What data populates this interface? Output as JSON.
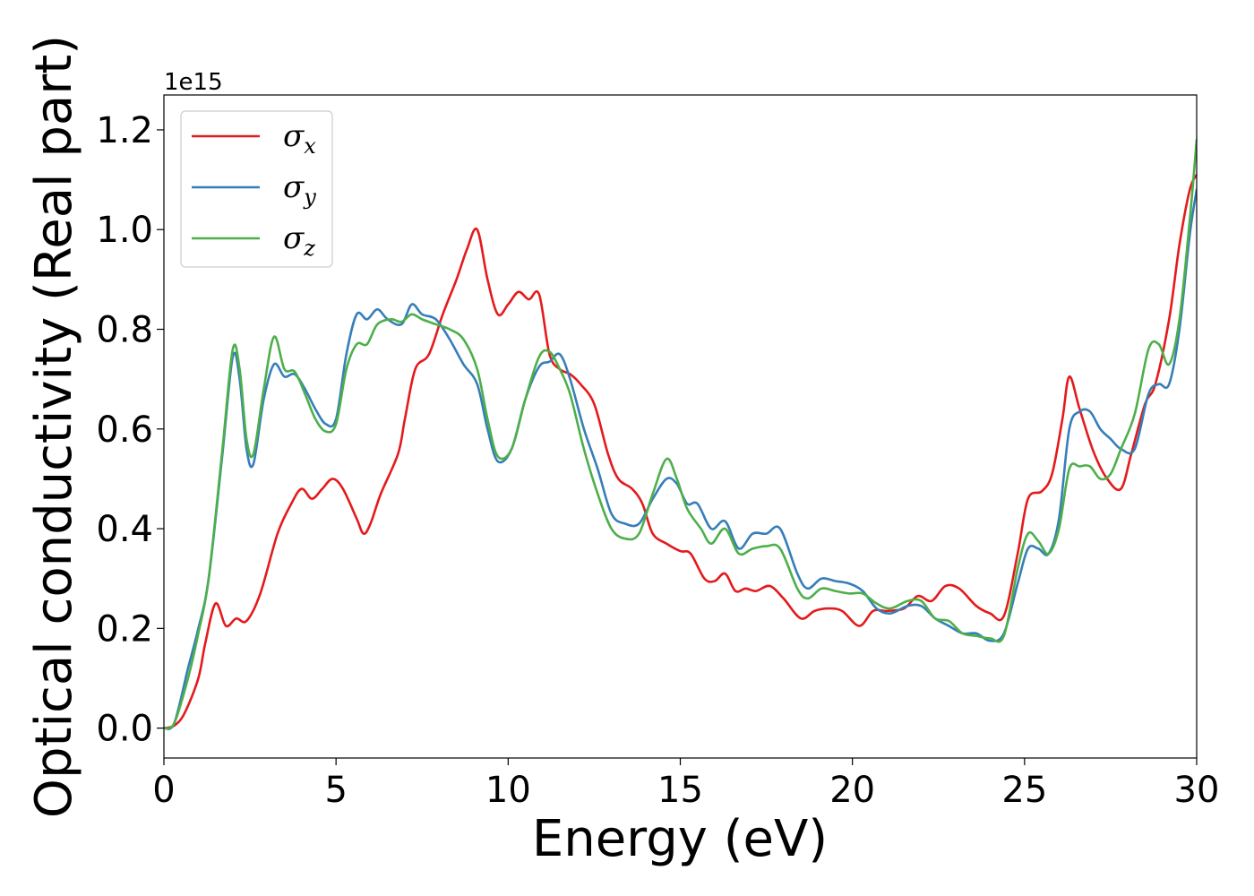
{
  "chart_data": {
    "type": "line",
    "title": "",
    "xlabel": "Energy (eV)",
    "ylabel": "Optical conductivity (Real part)",
    "y_offset_label": "1e15",
    "xlim": [
      0,
      30
    ],
    "ylim": [
      -0.06,
      1.27
    ],
    "x_ticks": [
      0,
      5,
      10,
      15,
      20,
      25,
      30
    ],
    "x_tick_labels": [
      "0",
      "5",
      "10",
      "15",
      "20",
      "25",
      "30"
    ],
    "y_ticks": [
      0.0,
      0.2,
      0.4,
      0.6,
      0.8,
      1.0,
      1.2
    ],
    "y_tick_labels": [
      "0.0",
      "0.2",
      "0.4",
      "0.6",
      "0.8",
      "1.0",
      "1.2"
    ],
    "grid": false,
    "legend_position": "top-left",
    "series": [
      {
        "name": "σx",
        "symbol": "σ",
        "subscript": "x",
        "color": "#e41a1c",
        "points": [
          [
            0,
            0
          ],
          [
            0.3,
            0.005
          ],
          [
            0.6,
            0.03
          ],
          [
            1.0,
            0.1
          ],
          [
            1.2,
            0.17
          ],
          [
            1.5,
            0.25
          ],
          [
            1.8,
            0.205
          ],
          [
            2.1,
            0.22
          ],
          [
            2.4,
            0.215
          ],
          [
            2.8,
            0.27
          ],
          [
            3.3,
            0.39
          ],
          [
            3.7,
            0.45
          ],
          [
            4.0,
            0.48
          ],
          [
            4.3,
            0.46
          ],
          [
            4.6,
            0.48
          ],
          [
            4.9,
            0.5
          ],
          [
            5.2,
            0.48
          ],
          [
            5.6,
            0.42
          ],
          [
            5.8,
            0.39
          ],
          [
            6.0,
            0.41
          ],
          [
            6.3,
            0.47
          ],
          [
            6.8,
            0.55
          ],
          [
            7.0,
            0.62
          ],
          [
            7.3,
            0.72
          ],
          [
            7.7,
            0.75
          ],
          [
            8.1,
            0.83
          ],
          [
            8.5,
            0.9
          ],
          [
            8.8,
            0.96
          ],
          [
            9.1,
            1.0
          ],
          [
            9.4,
            0.9
          ],
          [
            9.7,
            0.83
          ],
          [
            10.0,
            0.85
          ],
          [
            10.3,
            0.875
          ],
          [
            10.6,
            0.86
          ],
          [
            10.9,
            0.87
          ],
          [
            11.2,
            0.75
          ],
          [
            11.5,
            0.72
          ],
          [
            11.8,
            0.71
          ],
          [
            12.1,
            0.69
          ],
          [
            12.5,
            0.65
          ],
          [
            12.9,
            0.55
          ],
          [
            13.2,
            0.5
          ],
          [
            13.6,
            0.48
          ],
          [
            13.9,
            0.45
          ],
          [
            14.2,
            0.39
          ],
          [
            14.6,
            0.37
          ],
          [
            15.0,
            0.355
          ],
          [
            15.3,
            0.35
          ],
          [
            15.7,
            0.3
          ],
          [
            16.0,
            0.295
          ],
          [
            16.3,
            0.31
          ],
          [
            16.6,
            0.275
          ],
          [
            16.9,
            0.28
          ],
          [
            17.2,
            0.275
          ],
          [
            17.6,
            0.285
          ],
          [
            18.0,
            0.26
          ],
          [
            18.5,
            0.22
          ],
          [
            18.9,
            0.235
          ],
          [
            19.3,
            0.24
          ],
          [
            19.7,
            0.235
          ],
          [
            20.2,
            0.205
          ],
          [
            20.6,
            0.235
          ],
          [
            21.0,
            0.235
          ],
          [
            21.5,
            0.24
          ],
          [
            21.9,
            0.265
          ],
          [
            22.3,
            0.255
          ],
          [
            22.7,
            0.285
          ],
          [
            23.1,
            0.28
          ],
          [
            23.6,
            0.245
          ],
          [
            24.0,
            0.23
          ],
          [
            24.4,
            0.225
          ],
          [
            24.8,
            0.35
          ],
          [
            25.1,
            0.46
          ],
          [
            25.5,
            0.475
          ],
          [
            25.8,
            0.51
          ],
          [
            26.1,
            0.62
          ],
          [
            26.3,
            0.705
          ],
          [
            26.6,
            0.64
          ],
          [
            27.0,
            0.555
          ],
          [
            27.4,
            0.5
          ],
          [
            27.8,
            0.48
          ],
          [
            28.1,
            0.55
          ],
          [
            28.5,
            0.65
          ],
          [
            28.8,
            0.69
          ],
          [
            29.2,
            0.82
          ],
          [
            29.5,
            0.97
          ],
          [
            29.8,
            1.08
          ],
          [
            30.0,
            1.11
          ]
        ]
      },
      {
        "name": "σy",
        "symbol": "σ",
        "subscript": "y",
        "color": "#377eb8",
        "points": [
          [
            0,
            0
          ],
          [
            0.3,
            0.01
          ],
          [
            0.7,
            0.12
          ],
          [
            1.0,
            0.2
          ],
          [
            1.3,
            0.3
          ],
          [
            1.7,
            0.55
          ],
          [
            2.0,
            0.745
          ],
          [
            2.2,
            0.7
          ],
          [
            2.4,
            0.56
          ],
          [
            2.6,
            0.53
          ],
          [
            2.9,
            0.66
          ],
          [
            3.2,
            0.73
          ],
          [
            3.5,
            0.705
          ],
          [
            3.8,
            0.71
          ],
          [
            4.1,
            0.68
          ],
          [
            4.4,
            0.64
          ],
          [
            4.7,
            0.61
          ],
          [
            5.0,
            0.62
          ],
          [
            5.3,
            0.75
          ],
          [
            5.6,
            0.83
          ],
          [
            5.9,
            0.82
          ],
          [
            6.2,
            0.84
          ],
          [
            6.5,
            0.82
          ],
          [
            6.9,
            0.81
          ],
          [
            7.2,
            0.85
          ],
          [
            7.5,
            0.83
          ],
          [
            7.9,
            0.82
          ],
          [
            8.3,
            0.78
          ],
          [
            8.7,
            0.73
          ],
          [
            9.1,
            0.69
          ],
          [
            9.4,
            0.6
          ],
          [
            9.7,
            0.535
          ],
          [
            10.1,
            0.56
          ],
          [
            10.5,
            0.66
          ],
          [
            10.9,
            0.725
          ],
          [
            11.2,
            0.735
          ],
          [
            11.5,
            0.75
          ],
          [
            11.8,
            0.7
          ],
          [
            12.2,
            0.6
          ],
          [
            12.6,
            0.52
          ],
          [
            13.0,
            0.43
          ],
          [
            13.4,
            0.41
          ],
          [
            13.8,
            0.41
          ],
          [
            14.2,
            0.46
          ],
          [
            14.6,
            0.5
          ],
          [
            14.9,
            0.49
          ],
          [
            15.2,
            0.45
          ],
          [
            15.5,
            0.45
          ],
          [
            15.9,
            0.4
          ],
          [
            16.3,
            0.415
          ],
          [
            16.7,
            0.36
          ],
          [
            17.1,
            0.39
          ],
          [
            17.5,
            0.39
          ],
          [
            17.9,
            0.4
          ],
          [
            18.4,
            0.31
          ],
          [
            18.7,
            0.28
          ],
          [
            19.1,
            0.3
          ],
          [
            19.5,
            0.295
          ],
          [
            19.9,
            0.29
          ],
          [
            20.3,
            0.275
          ],
          [
            20.7,
            0.24
          ],
          [
            21.1,
            0.23
          ],
          [
            21.6,
            0.245
          ],
          [
            22.0,
            0.245
          ],
          [
            22.4,
            0.22
          ],
          [
            22.8,
            0.205
          ],
          [
            23.2,
            0.19
          ],
          [
            23.6,
            0.19
          ],
          [
            24.0,
            0.175
          ],
          [
            24.4,
            0.19
          ],
          [
            24.8,
            0.29
          ],
          [
            25.1,
            0.36
          ],
          [
            25.4,
            0.36
          ],
          [
            25.7,
            0.35
          ],
          [
            26.0,
            0.42
          ],
          [
            26.3,
            0.6
          ],
          [
            26.6,
            0.635
          ],
          [
            26.9,
            0.635
          ],
          [
            27.2,
            0.6
          ],
          [
            27.5,
            0.58
          ],
          [
            27.8,
            0.56
          ],
          [
            28.2,
            0.56
          ],
          [
            28.6,
            0.67
          ],
          [
            28.9,
            0.69
          ],
          [
            29.2,
            0.69
          ],
          [
            29.5,
            0.8
          ],
          [
            29.8,
            0.99
          ],
          [
            30.0,
            1.08
          ]
        ]
      },
      {
        "name": "σz",
        "symbol": "σ",
        "subscript": "z",
        "color": "#4daf4a",
        "points": [
          [
            0,
            0
          ],
          [
            0.3,
            0.01
          ],
          [
            0.7,
            0.1
          ],
          [
            1.0,
            0.19
          ],
          [
            1.3,
            0.3
          ],
          [
            1.7,
            0.56
          ],
          [
            2.0,
            0.76
          ],
          [
            2.2,
            0.72
          ],
          [
            2.4,
            0.58
          ],
          [
            2.6,
            0.55
          ],
          [
            2.9,
            0.68
          ],
          [
            3.2,
            0.785
          ],
          [
            3.5,
            0.72
          ],
          [
            3.8,
            0.715
          ],
          [
            4.1,
            0.67
          ],
          [
            4.4,
            0.62
          ],
          [
            4.7,
            0.595
          ],
          [
            5.0,
            0.61
          ],
          [
            5.3,
            0.72
          ],
          [
            5.6,
            0.77
          ],
          [
            5.9,
            0.77
          ],
          [
            6.2,
            0.81
          ],
          [
            6.6,
            0.82
          ],
          [
            6.9,
            0.815
          ],
          [
            7.2,
            0.83
          ],
          [
            7.5,
            0.82
          ],
          [
            7.9,
            0.81
          ],
          [
            8.3,
            0.8
          ],
          [
            8.7,
            0.78
          ],
          [
            9.1,
            0.72
          ],
          [
            9.4,
            0.62
          ],
          [
            9.7,
            0.545
          ],
          [
            10.1,
            0.56
          ],
          [
            10.5,
            0.66
          ],
          [
            10.9,
            0.745
          ],
          [
            11.2,
            0.755
          ],
          [
            11.5,
            0.72
          ],
          [
            11.8,
            0.67
          ],
          [
            12.2,
            0.56
          ],
          [
            12.6,
            0.47
          ],
          [
            13.0,
            0.4
          ],
          [
            13.4,
            0.38
          ],
          [
            13.8,
            0.39
          ],
          [
            14.2,
            0.47
          ],
          [
            14.6,
            0.54
          ],
          [
            14.9,
            0.5
          ],
          [
            15.2,
            0.44
          ],
          [
            15.6,
            0.4
          ],
          [
            15.9,
            0.37
          ],
          [
            16.3,
            0.4
          ],
          [
            16.7,
            0.35
          ],
          [
            17.1,
            0.36
          ],
          [
            17.5,
            0.365
          ],
          [
            17.9,
            0.36
          ],
          [
            18.4,
            0.28
          ],
          [
            18.7,
            0.26
          ],
          [
            19.1,
            0.28
          ],
          [
            19.5,
            0.275
          ],
          [
            19.9,
            0.27
          ],
          [
            20.3,
            0.27
          ],
          [
            20.7,
            0.25
          ],
          [
            21.1,
            0.24
          ],
          [
            21.6,
            0.255
          ],
          [
            22.0,
            0.255
          ],
          [
            22.4,
            0.22
          ],
          [
            22.8,
            0.215
          ],
          [
            23.2,
            0.19
          ],
          [
            23.6,
            0.185
          ],
          [
            24.0,
            0.18
          ],
          [
            24.4,
            0.185
          ],
          [
            24.8,
            0.32
          ],
          [
            25.1,
            0.39
          ],
          [
            25.4,
            0.375
          ],
          [
            25.7,
            0.35
          ],
          [
            26.0,
            0.4
          ],
          [
            26.3,
            0.52
          ],
          [
            26.6,
            0.525
          ],
          [
            26.9,
            0.525
          ],
          [
            27.2,
            0.5
          ],
          [
            27.5,
            0.51
          ],
          [
            27.8,
            0.56
          ],
          [
            28.2,
            0.63
          ],
          [
            28.6,
            0.76
          ],
          [
            28.9,
            0.77
          ],
          [
            29.2,
            0.73
          ],
          [
            29.5,
            0.82
          ],
          [
            29.8,
            1.02
          ],
          [
            30.0,
            1.18
          ]
        ]
      }
    ]
  }
}
